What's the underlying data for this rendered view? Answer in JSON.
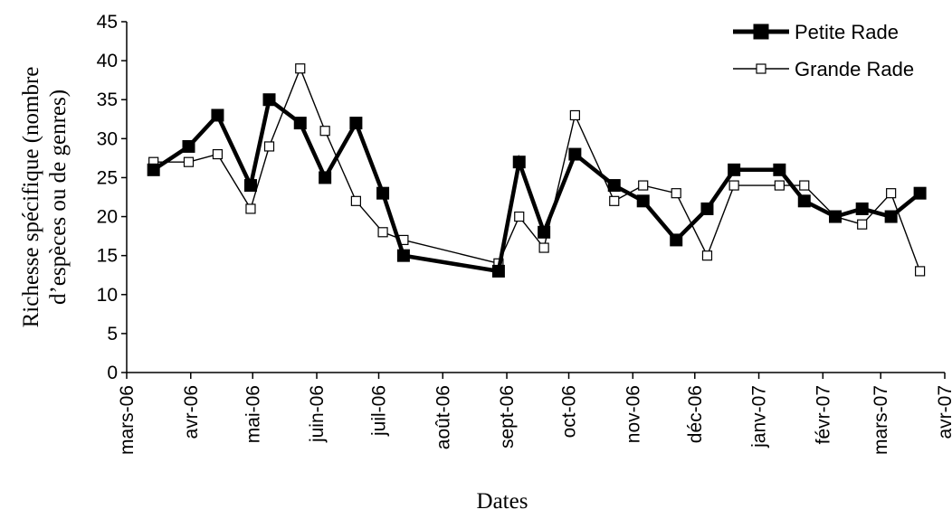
{
  "chart_data": {
    "type": "line",
    "xlabel": "Dates",
    "ylabel_line1": "Richesse spécifique (nombre",
    "ylabel_line2": "d’espèces ou de genres)",
    "ylim": [
      0,
      45
    ],
    "yticks": [
      0,
      5,
      10,
      15,
      20,
      25,
      30,
      35,
      40,
      45
    ],
    "x_range": [
      "2006-03-01",
      "2007-04-01"
    ],
    "xticks": [
      {
        "date": "2006-03-01",
        "label": "mars-06"
      },
      {
        "date": "2006-04-01",
        "label": "avr-06"
      },
      {
        "date": "2006-05-01",
        "label": "mai-06"
      },
      {
        "date": "2006-06-01",
        "label": "juin-06"
      },
      {
        "date": "2006-07-01",
        "label": "juil-06"
      },
      {
        "date": "2006-08-01",
        "label": "août-06"
      },
      {
        "date": "2006-09-01",
        "label": "sept-06"
      },
      {
        "date": "2006-10-01",
        "label": "oct-06"
      },
      {
        "date": "2006-11-01",
        "label": "nov-06"
      },
      {
        "date": "2006-12-01",
        "label": "déc-06"
      },
      {
        "date": "2007-01-01",
        "label": "janv-07"
      },
      {
        "date": "2007-02-01",
        "label": "févr-07"
      },
      {
        "date": "2007-03-01",
        "label": "mars-07"
      },
      {
        "date": "2007-04-01",
        "label": "avr-07"
      }
    ],
    "legend_position": "top-right",
    "series": [
      {
        "name": "Petite Rade",
        "marker": "filled-square",
        "color": "#000000",
        "points": [
          {
            "x": "2006-03-14",
            "y": 26
          },
          {
            "x": "2006-03-31",
            "y": 29
          },
          {
            "x": "2006-04-14",
            "y": 33
          },
          {
            "x": "2006-04-30",
            "y": 24
          },
          {
            "x": "2006-05-09",
            "y": 35
          },
          {
            "x": "2006-05-24",
            "y": 32
          },
          {
            "x": "2006-06-05",
            "y": 25
          },
          {
            "x": "2006-06-20",
            "y": 32
          },
          {
            "x": "2006-07-03",
            "y": 23
          },
          {
            "x": "2006-07-13",
            "y": 15
          },
          {
            "x": "2006-08-28",
            "y": 13
          },
          {
            "x": "2006-09-07",
            "y": 27
          },
          {
            "x": "2006-09-19",
            "y": 18
          },
          {
            "x": "2006-10-04",
            "y": 28
          },
          {
            "x": "2006-10-23",
            "y": 24
          },
          {
            "x": "2006-11-06",
            "y": 22
          },
          {
            "x": "2006-11-22",
            "y": 17
          },
          {
            "x": "2006-12-07",
            "y": 21
          },
          {
            "x": "2006-12-20",
            "y": 26
          },
          {
            "x": "2007-01-11",
            "y": 26
          },
          {
            "x": "2007-01-23",
            "y": 22
          },
          {
            "x": "2007-02-07",
            "y": 20
          },
          {
            "x": "2007-02-20",
            "y": 21
          },
          {
            "x": "2007-03-06",
            "y": 20
          },
          {
            "x": "2007-03-20",
            "y": 23
          }
        ]
      },
      {
        "name": "Grande Rade",
        "marker": "open-square",
        "color": "#000000",
        "points": [
          {
            "x": "2006-03-14",
            "y": 27
          },
          {
            "x": "2006-03-31",
            "y": 27
          },
          {
            "x": "2006-04-14",
            "y": 28
          },
          {
            "x": "2006-04-30",
            "y": 21
          },
          {
            "x": "2006-05-09",
            "y": 29
          },
          {
            "x": "2006-05-24",
            "y": 39
          },
          {
            "x": "2006-06-05",
            "y": 31
          },
          {
            "x": "2006-06-20",
            "y": 22
          },
          {
            "x": "2006-07-03",
            "y": 18
          },
          {
            "x": "2006-07-13",
            "y": 17
          },
          {
            "x": "2006-08-28",
            "y": 14
          },
          {
            "x": "2006-09-07",
            "y": 20
          },
          {
            "x": "2006-09-19",
            "y": 16
          },
          {
            "x": "2006-10-04",
            "y": 33
          },
          {
            "x": "2006-10-23",
            "y": 22
          },
          {
            "x": "2006-11-06",
            "y": 24
          },
          {
            "x": "2006-11-22",
            "y": 23
          },
          {
            "x": "2006-12-07",
            "y": 15
          },
          {
            "x": "2006-12-20",
            "y": 24
          },
          {
            "x": "2007-01-11",
            "y": 24
          },
          {
            "x": "2007-01-23",
            "y": 24
          },
          {
            "x": "2007-02-07",
            "y": 20
          },
          {
            "x": "2007-02-20",
            "y": 19
          },
          {
            "x": "2007-03-06",
            "y": 23
          },
          {
            "x": "2007-03-20",
            "y": 13
          }
        ]
      }
    ]
  }
}
